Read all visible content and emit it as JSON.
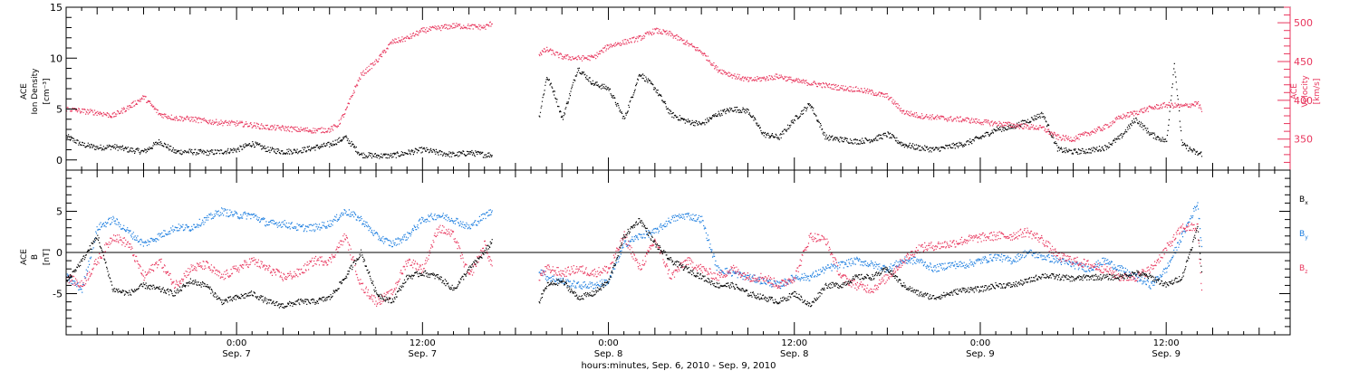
{
  "figure": {
    "xaxis_title": "hours:minutes, Sep.  6, 2010 - Sep.  9, 2010",
    "x_ticks": [
      {
        "hour": 24,
        "line1": "0:00",
        "line2": "Sep. 7"
      },
      {
        "hour": 36,
        "line1": "12:00",
        "line2": "Sep. 7"
      },
      {
        "hour": 48,
        "line1": "0:00",
        "line2": "Sep. 8"
      },
      {
        "hour": 60,
        "line1": "12:00",
        "line2": "Sep. 8"
      },
      {
        "hour": 72,
        "line1": "0:00",
        "line2": "Sep. 9"
      },
      {
        "hour": 84,
        "line1": "12:00",
        "line2": "Sep. 9"
      }
    ],
    "top_panel": {
      "left_label": [
        "ACE",
        "Ion Density",
        "[cm⁻³]"
      ],
      "right_label": [
        "ACE",
        "Velocity",
        "[km/s]"
      ]
    },
    "bottom_panel": {
      "left_label": [
        "ACE",
        "B",
        "[nT]"
      ],
      "legend": [
        {
          "name": "B",
          "sub": "x",
          "color": "#000000"
        },
        {
          "name": "B",
          "sub": "y",
          "color": "#1e7fe0"
        },
        {
          "name": "B",
          "sub": "z",
          "color": "#e8365d"
        }
      ]
    },
    "colors": {
      "density": "#000000",
      "velocity": "#e8365d",
      "bx": "#000000",
      "by": "#1e7fe0",
      "bz": "#e8365d"
    }
  },
  "chart_data": [
    {
      "type": "scatter",
      "panel": "top",
      "xlabel": "hours:minutes, Sep.  6, 2010 - Sep.  9, 2010",
      "xlim": [
        13,
        92
      ],
      "data_gaps_hours": [
        [
          40.5,
          43.5
        ],
        [
          86.3,
          92
        ]
      ],
      "left_axis": {
        "label": "ACE Ion Density [cm⁻³]",
        "ylim": [
          -1,
          15
        ],
        "ticks": [
          0,
          5,
          10,
          15
        ]
      },
      "right_axis": {
        "label": "ACE Velocity [km/s]",
        "ylim": [
          310,
          520
        ],
        "ticks": [
          350,
          400,
          450,
          500
        ]
      },
      "series": [
        {
          "name": "Ion Density",
          "axis": "left",
          "color": "#000000",
          "x": [
            13,
            14,
            15,
            16,
            17,
            18,
            19,
            20,
            21,
            22,
            23,
            24,
            25,
            26,
            27,
            28,
            29,
            30,
            31,
            32,
            33,
            34,
            35,
            36,
            37,
            38,
            39,
            40,
            40.5,
            43.5,
            44,
            44.5,
            45,
            46,
            47,
            48,
            49,
            50,
            51,
            52,
            53,
            54,
            55,
            56,
            57,
            58,
            59,
            60,
            61,
            62,
            63,
            64,
            65,
            66,
            67,
            68,
            69,
            70,
            71,
            72,
            73,
            74,
            75,
            76,
            77,
            78,
            79,
            80,
            81,
            82,
            83,
            84,
            84.5,
            85,
            86,
            86.3
          ],
          "y": [
            2.3,
            1.5,
            1.2,
            1.3,
            1,
            0.8,
            1.8,
            0.8,
            0.8,
            0.7,
            0.8,
            1,
            1.6,
            1,
            0.8,
            0.9,
            1.2,
            1.5,
            2.2,
            0.5,
            0.4,
            0.4,
            0.7,
            1,
            0.7,
            0.5,
            0.7,
            0.5,
            0.5,
            4.2,
            8.2,
            6.5,
            4,
            9,
            7.5,
            7,
            4,
            8.5,
            7,
            4.5,
            3.8,
            3.5,
            4.5,
            5,
            4.8,
            2.5,
            2.2,
            4,
            5.5,
            2.2,
            2,
            1.8,
            2,
            2.5,
            1.5,
            1.2,
            1,
            1.3,
            1.6,
            2.2,
            3,
            3.2,
            3.8,
            4.5,
            1,
            0.8,
            0.9,
            1.2,
            2.2,
            4,
            2.5,
            1.8,
            9.5,
            1.5,
            0.6,
            0.6
          ]
        },
        {
          "name": "Velocity",
          "axis": "right",
          "color": "#e8365d",
          "x": [
            13,
            14,
            15,
            16,
            17,
            18,
            19,
            20,
            21,
            22,
            23,
            24,
            25,
            26,
            27,
            28,
            29,
            30,
            30.5,
            31,
            31.5,
            32,
            33,
            34,
            35,
            36,
            37,
            38,
            39,
            40,
            40.5,
            43.5,
            44,
            45,
            46,
            47,
            48,
            49,
            50,
            51,
            52,
            53,
            54,
            55,
            56,
            57,
            58,
            59,
            60,
            61,
            62,
            63,
            64,
            65,
            66,
            67,
            68,
            69,
            70,
            71,
            72,
            73,
            74,
            75,
            76,
            77,
            78,
            79,
            80,
            81,
            82,
            83,
            84,
            85,
            86,
            86.3
          ],
          "y": [
            389,
            386,
            384,
            380,
            391,
            404,
            382,
            377,
            376,
            373,
            371,
            370,
            368,
            365,
            364,
            362,
            361,
            362,
            368,
            385,
            410,
            432,
            450,
            475,
            480,
            490,
            493,
            496,
            495,
            494,
            500,
            460,
            465,
            456,
            454,
            455,
            470,
            475,
            480,
            490,
            485,
            474,
            462,
            440,
            432,
            426,
            428,
            431,
            425,
            422,
            419,
            416,
            414,
            410,
            405,
            385,
            380,
            378,
            376,
            375,
            372,
            370,
            368,
            366,
            364,
            352,
            350,
            358,
            365,
            378,
            384,
            390,
            394,
            392,
            396,
            386
          ]
        }
      ]
    },
    {
      "type": "scatter",
      "panel": "bottom",
      "xlabel": "hours:minutes, Sep.  6, 2010 - Sep.  9, 2010",
      "xlim": [
        13,
        92
      ],
      "ylabel": "ACE B [nT]",
      "ylim": [
        -10,
        10
      ],
      "ticks": [
        -5,
        0,
        5
      ],
      "zero_line": true,
      "data_gaps_hours": [
        [
          40.5,
          43.5
        ],
        [
          86.3,
          92
        ]
      ],
      "series": [
        {
          "name": "Bx",
          "color": "#000000",
          "x": [
            13,
            14,
            15,
            16,
            17,
            18,
            19,
            20,
            21,
            22,
            23,
            24,
            25,
            26,
            27,
            28,
            29,
            30,
            31,
            32,
            33,
            34,
            35,
            36,
            37,
            38,
            39,
            40,
            40.5,
            43.5,
            44,
            45,
            46,
            47,
            48,
            49,
            50,
            51,
            52,
            53,
            54,
            55,
            56,
            57,
            58,
            59,
            60,
            61,
            62,
            63,
            64,
            65,
            66,
            67,
            68,
            69,
            70,
            71,
            72,
            73,
            74,
            75,
            76,
            77,
            78,
            79,
            80,
            81,
            82,
            83,
            84,
            85,
            86,
            86.3
          ],
          "y": [
            -3.5,
            -1,
            2,
            -4.5,
            -5,
            -4,
            -4.5,
            -5,
            -3.5,
            -4,
            -6,
            -5.5,
            -5,
            -6,
            -6.5,
            -6,
            -6,
            -5.5,
            -3,
            0,
            -5,
            -6,
            -3,
            -2.5,
            -3,
            -4.5,
            -2,
            0,
            1.5,
            -6,
            -4,
            -3.5,
            -5.5,
            -5,
            -3.5,
            2,
            4,
            1,
            -1,
            -2,
            -3,
            -4,
            -4,
            -5,
            -5.5,
            -6,
            -5,
            -6.5,
            -4,
            -4,
            -3,
            -3,
            -2,
            -4,
            -5,
            -5.5,
            -5,
            -4.5,
            -4.5,
            -4,
            -4,
            -3.5,
            -2.8,
            -3,
            -3.2,
            -3,
            -3,
            -3,
            -2.5,
            -3,
            -4,
            -3,
            3,
            -3
          ]
        },
        {
          "name": "By",
          "color": "#1e7fe0",
          "x": [
            13,
            14,
            15,
            16,
            17,
            18,
            19,
            20,
            21,
            22,
            23,
            24,
            25,
            26,
            27,
            28,
            29,
            30,
            31,
            32,
            33,
            34,
            35,
            36,
            37,
            38,
            39,
            40,
            40.5,
            43.5,
            44,
            45,
            46,
            47,
            48,
            49,
            50,
            51,
            52,
            53,
            54,
            55,
            56,
            57,
            58,
            59,
            60,
            61,
            62,
            63,
            64,
            65,
            66,
            67,
            68,
            69,
            70,
            71,
            72,
            73,
            74,
            75,
            76,
            77,
            78,
            79,
            80,
            81,
            82,
            83,
            84,
            85,
            86,
            86.3
          ],
          "y": [
            -3,
            -4.5,
            3,
            4,
            2.5,
            1,
            2,
            3,
            3,
            4,
            5,
            4.5,
            4.5,
            3.5,
            3.5,
            3,
            3,
            3.5,
            5,
            4,
            2,
            1,
            2,
            4,
            4.5,
            4,
            3,
            4.5,
            5,
            -2,
            -3,
            -3.5,
            -4,
            -4,
            -3.5,
            1,
            2,
            2.5,
            4,
            4.5,
            4,
            -2,
            -2.5,
            -3,
            -3.5,
            -4,
            -3,
            -3,
            -2,
            -1.5,
            -1,
            -1.5,
            -2,
            -1,
            -1,
            -2,
            -1.5,
            -1.5,
            -1,
            -0.5,
            -1,
            0,
            -0.5,
            -1,
            -1.5,
            -2,
            -1,
            -2,
            -3,
            -4,
            -2,
            2,
            6,
            0
          ]
        },
        {
          "name": "Bz",
          "color": "#e8365d",
          "x": [
            13,
            14,
            15,
            16,
            17,
            18,
            19,
            20,
            21,
            22,
            23,
            24,
            25,
            26,
            27,
            28,
            29,
            30,
            31,
            32,
            33,
            34,
            35,
            36,
            37,
            38,
            39,
            40,
            40.5,
            43.5,
            44,
            45,
            46,
            47,
            48,
            49,
            50,
            51,
            52,
            53,
            54,
            55,
            56,
            57,
            58,
            59,
            60,
            61,
            62,
            63,
            64,
            65,
            66,
            67,
            68,
            69,
            70,
            71,
            72,
            73,
            74,
            75,
            76,
            77,
            78,
            79,
            80,
            81,
            82,
            83,
            84,
            85,
            86,
            86.3
          ],
          "y": [
            -3,
            -4,
            -1,
            2,
            1,
            -3,
            -1,
            -4,
            -2,
            -1.5,
            -3,
            -2,
            -1,
            -2,
            -3,
            -2.5,
            -1,
            -1,
            2,
            -4,
            -6,
            -5,
            -1,
            -2,
            3,
            2,
            -3,
            1,
            -2,
            -3,
            -2,
            -2.5,
            -2,
            -2.5,
            -2,
            2,
            -2,
            1.5,
            -3,
            -1,
            -2,
            -3,
            -2,
            -3,
            -3,
            -4,
            -3,
            2,
            1.5,
            -3,
            -4,
            -4.5,
            -3,
            -1,
            0.5,
            0.8,
            1,
            1.5,
            1.8,
            2,
            2,
            2.5,
            1.5,
            -0.5,
            -1,
            -1.5,
            -2,
            -3,
            -3,
            -2,
            0.5,
            3,
            3,
            -6
          ]
        }
      ]
    }
  ]
}
